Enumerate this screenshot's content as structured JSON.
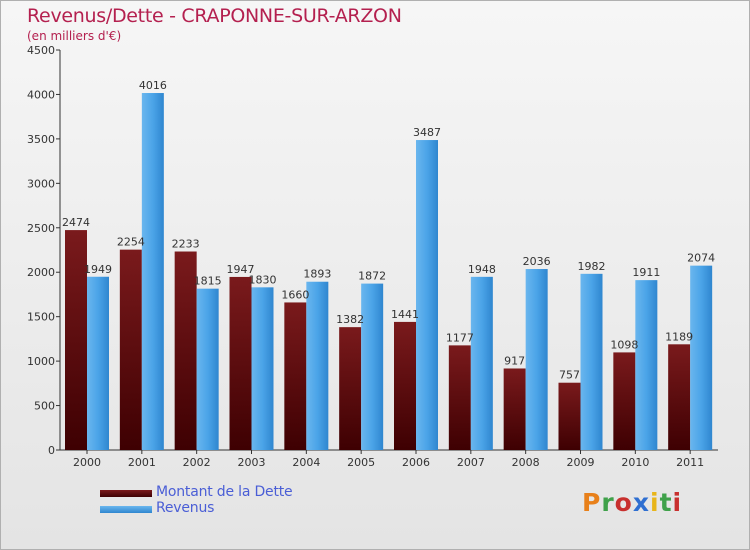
{
  "header": {
    "title": "Revenus/Dette - CRAPONNE-SUR-ARZON",
    "subtitle": "(en milliers d'€)"
  },
  "legend": {
    "items": [
      {
        "label": "Montant de la Dette",
        "color": "#6b0a10"
      },
      {
        "label": "Revenus",
        "color": "#4aa3e6"
      }
    ]
  },
  "logo": {
    "text": "Proxiti",
    "letter_colors": [
      "#e8801a",
      "#3fa14a",
      "#c8302e",
      "#2f6fd1",
      "#e8b51a",
      "#3fa14a",
      "#c8302e"
    ]
  },
  "chart_data": {
    "type": "bar",
    "categories": [
      "2000",
      "2001",
      "2002",
      "2003",
      "2004",
      "2005",
      "2006",
      "2007",
      "2008",
      "2009",
      "2010",
      "2011"
    ],
    "series": [
      {
        "name": "Montant de la Dette",
        "values": [
          2474,
          2254,
          2233,
          1947,
          1660,
          1382,
          1441,
          1177,
          917,
          757,
          1098,
          1189
        ],
        "labels": [
          "2474",
          "2254",
          "2233",
          "1947",
          "1660",
          "1382",
          "1441",
          "1177",
          "917",
          "757",
          "1098",
          "1189"
        ]
      },
      {
        "name": "Revenus",
        "values": [
          1949,
          4016,
          1815,
          1830,
          1893,
          1872,
          3487,
          1948,
          2036,
          1982,
          1911,
          2074
        ],
        "labels": [
          "1949",
          "4016",
          "1815",
          "1830",
          "1893",
          "1872",
          "3487",
          "1948",
          "2036",
          "1982",
          "1911",
          "2074"
        ]
      }
    ],
    "ylim": [
      0,
      4500
    ],
    "yticks": [
      0,
      500,
      1000,
      1500,
      2000,
      2500,
      3000,
      3500,
      4000,
      4500
    ],
    "grid": false,
    "legend_position": "bottom-left"
  }
}
